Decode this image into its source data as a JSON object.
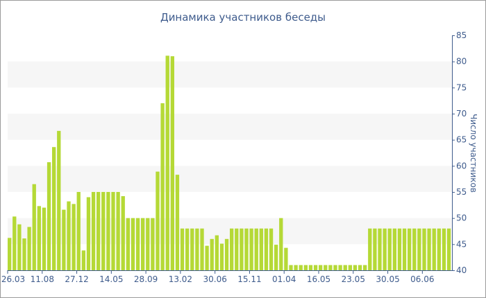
{
  "chart_data": {
    "type": "bar",
    "title": "Динамика участников беседы",
    "xlabel": "",
    "ylabel": "Число участников",
    "ylim": [
      40,
      85
    ],
    "yticks": [
      40,
      45,
      50,
      55,
      60,
      65,
      70,
      75,
      80,
      85
    ],
    "ytick_labels": [
      "40",
      "45",
      "50",
      "55",
      "60",
      "65",
      "70",
      "75",
      "80",
      "85"
    ],
    "x_tick_labels": [
      {
        "label": "26.03",
        "index": 0
      },
      {
        "label": "11.08",
        "index": 7
      },
      {
        "label": "27.12",
        "index": 14
      },
      {
        "label": "14.05",
        "index": 21
      },
      {
        "label": "28.09",
        "index": 28
      },
      {
        "label": "13.02",
        "index": 35
      },
      {
        "label": "30.06",
        "index": 42
      },
      {
        "label": "15.11",
        "index": 49
      },
      {
        "label": "01.04",
        "index": 56
      },
      {
        "label": "16.05",
        "index": 63
      },
      {
        "label": "23.05",
        "index": 70
      },
      {
        "label": "30.05",
        "index": 77
      },
      {
        "label": "06.06",
        "index": 84
      }
    ],
    "values": [
      46.2,
      50.3,
      48.8,
      46.1,
      48.3,
      56.5,
      52.3,
      52.0,
      60.7,
      63.6,
      66.7,
      51.6,
      53.2,
      52.7,
      55.0,
      43.8,
      54.0,
      55.0,
      55.0,
      55.0,
      55.0,
      55.0,
      55.0,
      54.2,
      50.0,
      50.0,
      50.0,
      50.0,
      50.0,
      50.0,
      58.9,
      72.0,
      81.1,
      81.0,
      58.3,
      48.0,
      48.0,
      48.0,
      48.0,
      48.0,
      44.7,
      46.0,
      46.7,
      45.1,
      46.0,
      48.0,
      48.0,
      48.0,
      48.0,
      48.0,
      48.0,
      48.0,
      48.0,
      48.0,
      44.9,
      50.0,
      44.3,
      41.0,
      41.0,
      41.0,
      41.0,
      41.0,
      41.0,
      41.0,
      41.0,
      41.0,
      41.0,
      41.0,
      41.0,
      41.0,
      41.0,
      41.0,
      41.0,
      48.0,
      48.0,
      48.0,
      48.0,
      48.0,
      48.0,
      48.0,
      48.0,
      48.0,
      48.0,
      48.0,
      48.0,
      48.0,
      48.0,
      48.0,
      48.0,
      48.0
    ],
    "bar_color": "#b5d936",
    "band_color": "#f6f6f6",
    "text_color": "#3e5b8c",
    "grid": "alternating bands",
    "y_axis_position": "right",
    "legend": "none"
  }
}
